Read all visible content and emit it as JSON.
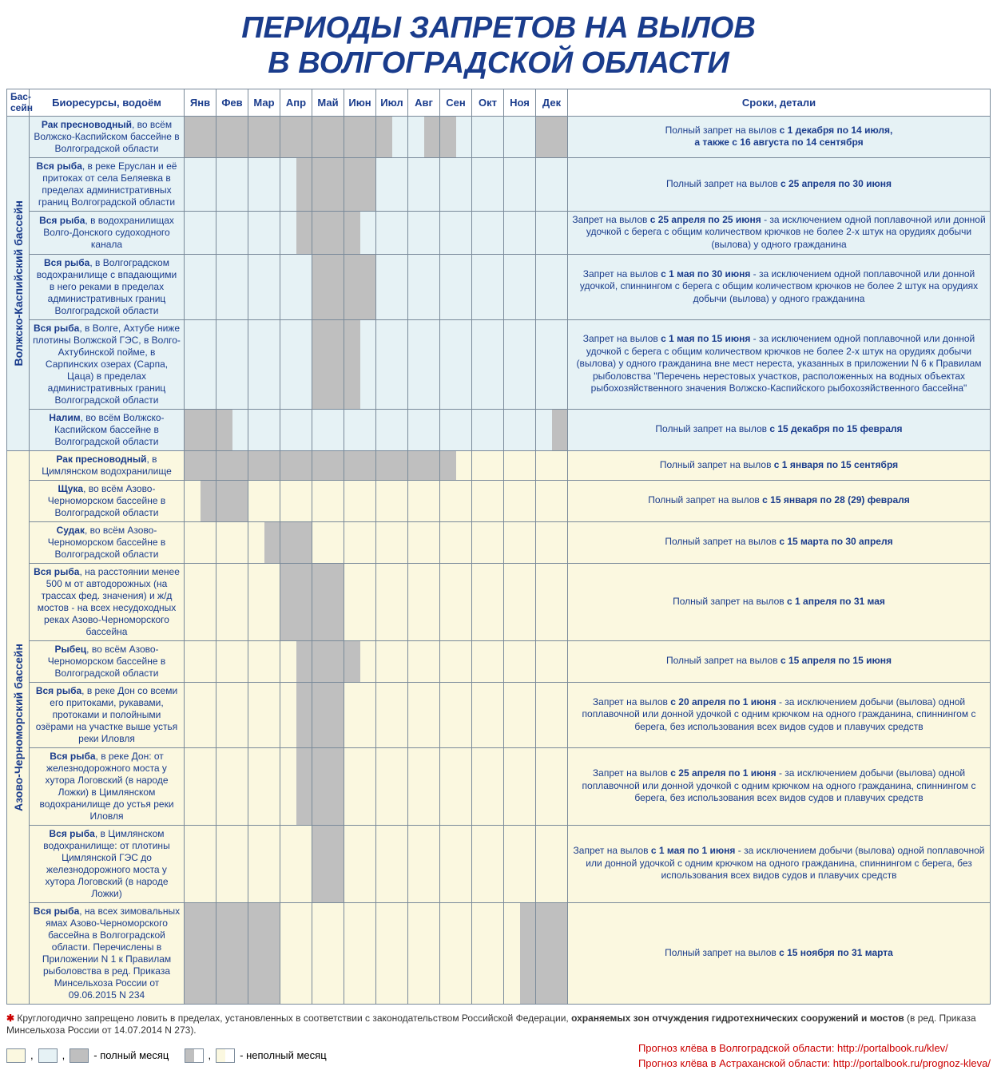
{
  "title_line1": "ПЕРИОДЫ ЗАПРЕТОВ НА ВЫЛОВ",
  "title_line2": "В ВОЛГОГРАДСКОЙ ОБЛАСТИ",
  "colors": {
    "basin1_bg": "#e6f2f5",
    "basin2_bg": "#fbf8e0",
    "ban_fill": "#bfbfbf",
    "border": "#7a8a9a",
    "heading": "#1a3c8c",
    "link_red": "#cc0000"
  },
  "headers": {
    "basin": "Бас-\nсейн",
    "resource": "Биоресурсы, водоём",
    "months": [
      "Янв",
      "Фев",
      "Мар",
      "Апр",
      "Май",
      "Июн",
      "Июл",
      "Авг",
      "Сен",
      "Окт",
      "Ноя",
      "Дек"
    ],
    "details": "Сроки, детали"
  },
  "basins": [
    {
      "name": "Волжско-Каспийский бассейн",
      "bg": "#e6f2f5",
      "rows": [
        {
          "resource_html": "<b>Рак пресноводный</b>, во всём Волжско-Каспийском бассейне в Волгоградской области",
          "months": [
            [
              1,
              1
            ],
            [
              1,
              1
            ],
            [
              1,
              1
            ],
            [
              1,
              1
            ],
            [
              1,
              1
            ],
            [
              1,
              1
            ],
            [
              1,
              0
            ],
            [
              0,
              1
            ],
            [
              1,
              0
            ],
            [
              0,
              0
            ],
            [
              0,
              0
            ],
            [
              1,
              1
            ]
          ],
          "details_html": "Полный запрет на вылов <b>с 1 декабря по 14 июля,<br>а также с 16 августа  по 14 сентября</b>"
        },
        {
          "resource_html": "<b>Вся рыба</b>, в реке Еруслан и её притоках от села Беляевка в пределах административных границ Волгоградской области",
          "months": [
            [
              0,
              0
            ],
            [
              0,
              0
            ],
            [
              0,
              0
            ],
            [
              0,
              1
            ],
            [
              1,
              1
            ],
            [
              1,
              1
            ],
            [
              0,
              0
            ],
            [
              0,
              0
            ],
            [
              0,
              0
            ],
            [
              0,
              0
            ],
            [
              0,
              0
            ],
            [
              0,
              0
            ]
          ],
          "details_html": "Полный запрет на вылов <b>с 25 апреля по 30 июня</b>"
        },
        {
          "resource_html": "<b>Вся рыба</b>, в водохранилищах Волго-Донского судоходного канала",
          "months": [
            [
              0,
              0
            ],
            [
              0,
              0
            ],
            [
              0,
              0
            ],
            [
              0,
              1
            ],
            [
              1,
              1
            ],
            [
              1,
              0
            ],
            [
              0,
              0
            ],
            [
              0,
              0
            ],
            [
              0,
              0
            ],
            [
              0,
              0
            ],
            [
              0,
              0
            ],
            [
              0,
              0
            ]
          ],
          "details_html": "Запрет на вылов <b>с 25 апреля по 25 июня</b> - за исключением одной поплавочной или донной удочкой с берега с общим количеством крючков не более 2-х штук на орудиях добычи (вылова) у одного гражданина"
        },
        {
          "resource_html": "<b>Вся рыба</b>, в Волгоградском водохранилище с впадающими в него реками в пределах административных границ Волгоградской области",
          "months": [
            [
              0,
              0
            ],
            [
              0,
              0
            ],
            [
              0,
              0
            ],
            [
              0,
              0
            ],
            [
              1,
              1
            ],
            [
              1,
              1
            ],
            [
              0,
              0
            ],
            [
              0,
              0
            ],
            [
              0,
              0
            ],
            [
              0,
              0
            ],
            [
              0,
              0
            ],
            [
              0,
              0
            ]
          ],
          "details_html": "Запрет на вылов <b>с 1 мая по 30 июня</b> - за исключением одной поплавочной или донной удочкой, спиннингом с берега с общим количеством крючков не более 2 штук на орудиях добычи (вылова) у одного гражданина"
        },
        {
          "resource_html": "<b>Вся рыба</b>, в Волге, Ахтубе ниже плотины Волжской ГЭС, в Волго-Ахтубинской пойме, в Сарпинских озерах (Сарпа, Цаца) в пределах административных границ Волгоградской области",
          "months": [
            [
              0,
              0
            ],
            [
              0,
              0
            ],
            [
              0,
              0
            ],
            [
              0,
              0
            ],
            [
              1,
              1
            ],
            [
              1,
              0
            ],
            [
              0,
              0
            ],
            [
              0,
              0
            ],
            [
              0,
              0
            ],
            [
              0,
              0
            ],
            [
              0,
              0
            ],
            [
              0,
              0
            ]
          ],
          "details_html": "Запрет на вылов <b>с 1 мая по 15 июня</b> - за исключением одной поплавочной или донной удочкой с берега с общим количеством крючков не более 2-х штук на орудиях добычи (вылова) у одного гражданина вне мест нереста, указанных в приложении N 6 к Правилам рыболовства \"Перечень нерестовых участков, расположенных на водных объектах рыбохозяйственного значения Волжско-Каспийского рыбохозяйственного бассейна\""
        },
        {
          "resource_html": "<b>Налим</b>, во всём Волжско-Каспийском бассейне в Волгоградской области",
          "months": [
            [
              1,
              1
            ],
            [
              1,
              0
            ],
            [
              0,
              0
            ],
            [
              0,
              0
            ],
            [
              0,
              0
            ],
            [
              0,
              0
            ],
            [
              0,
              0
            ],
            [
              0,
              0
            ],
            [
              0,
              0
            ],
            [
              0,
              0
            ],
            [
              0,
              0
            ],
            [
              0,
              1
            ]
          ],
          "details_html": "Полный запрет на вылов <b>с 15 декабря по 15 февраля</b>"
        }
      ]
    },
    {
      "name": "Азово-Черноморский бассейн",
      "bg": "#fbf8e0",
      "rows": [
        {
          "resource_html": "<b>Рак пресноводный</b>, в Цимлянском водохранилище",
          "months": [
            [
              1,
              1
            ],
            [
              1,
              1
            ],
            [
              1,
              1
            ],
            [
              1,
              1
            ],
            [
              1,
              1
            ],
            [
              1,
              1
            ],
            [
              1,
              1
            ],
            [
              1,
              1
            ],
            [
              1,
              0
            ],
            [
              0,
              0
            ],
            [
              0,
              0
            ],
            [
              0,
              0
            ]
          ],
          "details_html": "Полный запрет на вылов <b>с 1 января по 15 сентября</b>"
        },
        {
          "resource_html": "<b>Щука</b>, во всём Азово-Черноморском бассейне в Волгоградской области",
          "months": [
            [
              0,
              1
            ],
            [
              1,
              1
            ],
            [
              0,
              0
            ],
            [
              0,
              0
            ],
            [
              0,
              0
            ],
            [
              0,
              0
            ],
            [
              0,
              0
            ],
            [
              0,
              0
            ],
            [
              0,
              0
            ],
            [
              0,
              0
            ],
            [
              0,
              0
            ],
            [
              0,
              0
            ]
          ],
          "details_html": "Полный запрет на вылов <b>с 15 января по 28 (29) февраля</b>"
        },
        {
          "resource_html": "<b>Судак</b>, во всём Азово-Черноморском бассейне в Волгоградской области",
          "months": [
            [
              0,
              0
            ],
            [
              0,
              0
            ],
            [
              0,
              1
            ],
            [
              1,
              1
            ],
            [
              0,
              0
            ],
            [
              0,
              0
            ],
            [
              0,
              0
            ],
            [
              0,
              0
            ],
            [
              0,
              0
            ],
            [
              0,
              0
            ],
            [
              0,
              0
            ],
            [
              0,
              0
            ]
          ],
          "details_html": "Полный запрет на вылов <b>с 15 марта по 30 апреля</b>"
        },
        {
          "resource_html": "<b>Вся рыба</b>, на расстоянии менее 500 м от автодорожных (на трассах фед. значения) и ж/д мостов - на всех несудоходных реках Азово-Черноморского бассейна",
          "months": [
            [
              0,
              0
            ],
            [
              0,
              0
            ],
            [
              0,
              0
            ],
            [
              1,
              1
            ],
            [
              1,
              1
            ],
            [
              0,
              0
            ],
            [
              0,
              0
            ],
            [
              0,
              0
            ],
            [
              0,
              0
            ],
            [
              0,
              0
            ],
            [
              0,
              0
            ],
            [
              0,
              0
            ]
          ],
          "details_html": "Полный запрет на вылов <b>с 1 апреля по 31 мая</b>"
        },
        {
          "resource_html": "<b>Рыбец</b>, во всём Азово-Черноморском бассейне в Волгоградской области",
          "months": [
            [
              0,
              0
            ],
            [
              0,
              0
            ],
            [
              0,
              0
            ],
            [
              0,
              1
            ],
            [
              1,
              1
            ],
            [
              1,
              0
            ],
            [
              0,
              0
            ],
            [
              0,
              0
            ],
            [
              0,
              0
            ],
            [
              0,
              0
            ],
            [
              0,
              0
            ],
            [
              0,
              0
            ]
          ],
          "details_html": "Полный запрет на вылов <b>с 15 апреля по 15 июня</b>"
        },
        {
          "resource_html": "<b>Вся рыба</b>, в реке Дон со всеми его притоками, рукавами, протоками и полойными озёрами на участке выше устья реки Иловля",
          "months": [
            [
              0,
              0
            ],
            [
              0,
              0
            ],
            [
              0,
              0
            ],
            [
              0,
              1
            ],
            [
              1,
              1
            ],
            [
              0,
              0
            ],
            [
              0,
              0
            ],
            [
              0,
              0
            ],
            [
              0,
              0
            ],
            [
              0,
              0
            ],
            [
              0,
              0
            ],
            [
              0,
              0
            ]
          ],
          "details_html": "Запрет на вылов <b>с 20 апреля по 1 июня</b> - за исключением добычи (вылова) одной поплавочной или донной удочкой с одним крючком на одного гражданина, спиннингом с берега, без использования всех видов судов и плавучих средств"
        },
        {
          "resource_html": "<b>Вся рыба</b>, в реке Дон: от железнодорожного моста у хутора Логовский (в народе Ложки) в Цимлянском водохранилище до устья реки Иловля",
          "months": [
            [
              0,
              0
            ],
            [
              0,
              0
            ],
            [
              0,
              0
            ],
            [
              0,
              1
            ],
            [
              1,
              1
            ],
            [
              0,
              0
            ],
            [
              0,
              0
            ],
            [
              0,
              0
            ],
            [
              0,
              0
            ],
            [
              0,
              0
            ],
            [
              0,
              0
            ],
            [
              0,
              0
            ]
          ],
          "details_html": "Запрет на вылов <b>с 25 апреля по 1 июня</b> - за исключением добычи (вылова) одной поплавочной или донной удочкой с одним крючком на одного гражданина, спиннингом с берега, без использования всех видов судов и плавучих средств"
        },
        {
          "resource_html": "<b>Вся рыба</b>, в Цимлянском водохранилище: от плотины Цимлянской ГЭС до железнодорожного моста у хутора Логовский (в народе Ложки)",
          "months": [
            [
              0,
              0
            ],
            [
              0,
              0
            ],
            [
              0,
              0
            ],
            [
              0,
              0
            ],
            [
              1,
              1
            ],
            [
              0,
              0
            ],
            [
              0,
              0
            ],
            [
              0,
              0
            ],
            [
              0,
              0
            ],
            [
              0,
              0
            ],
            [
              0,
              0
            ],
            [
              0,
              0
            ]
          ],
          "details_html": "Запрет на вылов <b>с 1 мая по 1 июня</b> - за исключением добычи (вылова) одной поплавочной или донной удочкой с одним крючком на одного гражданина, спиннингом с берега, без использования всех видов судов и плавучих средств"
        },
        {
          "resource_html": "<b>Вся рыба</b>, на всех зимовальных ямах Азово-Черноморского бассейна в Волгоградской области. Перечислены в Приложении N 1 к Правилам рыболовства в ред. Приказа Минсельхоза России от 09.06.2015 N 234",
          "months": [
            [
              1,
              1
            ],
            [
              1,
              1
            ],
            [
              1,
              1
            ],
            [
              0,
              0
            ],
            [
              0,
              0
            ],
            [
              0,
              0
            ],
            [
              0,
              0
            ],
            [
              0,
              0
            ],
            [
              0,
              0
            ],
            [
              0,
              0
            ],
            [
              0,
              1
            ],
            [
              1,
              1
            ]
          ],
          "details_html": "Полный запрет на вылов <b>с 15 ноября по 31 марта</b>"
        }
      ]
    }
  ],
  "footnote_html": "<span class=\"ast\">✱</span> Круглогодично запрещено ловить в пределах, установленных в соответствии с законодательством Российской Федерации, <b>охраняемых зон отчуждения гидротехнических сооружений и мостов</b> (в ред. Приказа Минсельхоза России от 14.07.2014 N 273).",
  "legend": {
    "full_label": " - полный месяц",
    "half_label": " - неполный месяц"
  },
  "links": {
    "l1": "Прогноз клёва в Волгоградской области: http://portalbook.ru/klev/",
    "l2": "Прогноз клёва в Астраханской области: http://portalbook.ru/prognoz-kleva/"
  }
}
